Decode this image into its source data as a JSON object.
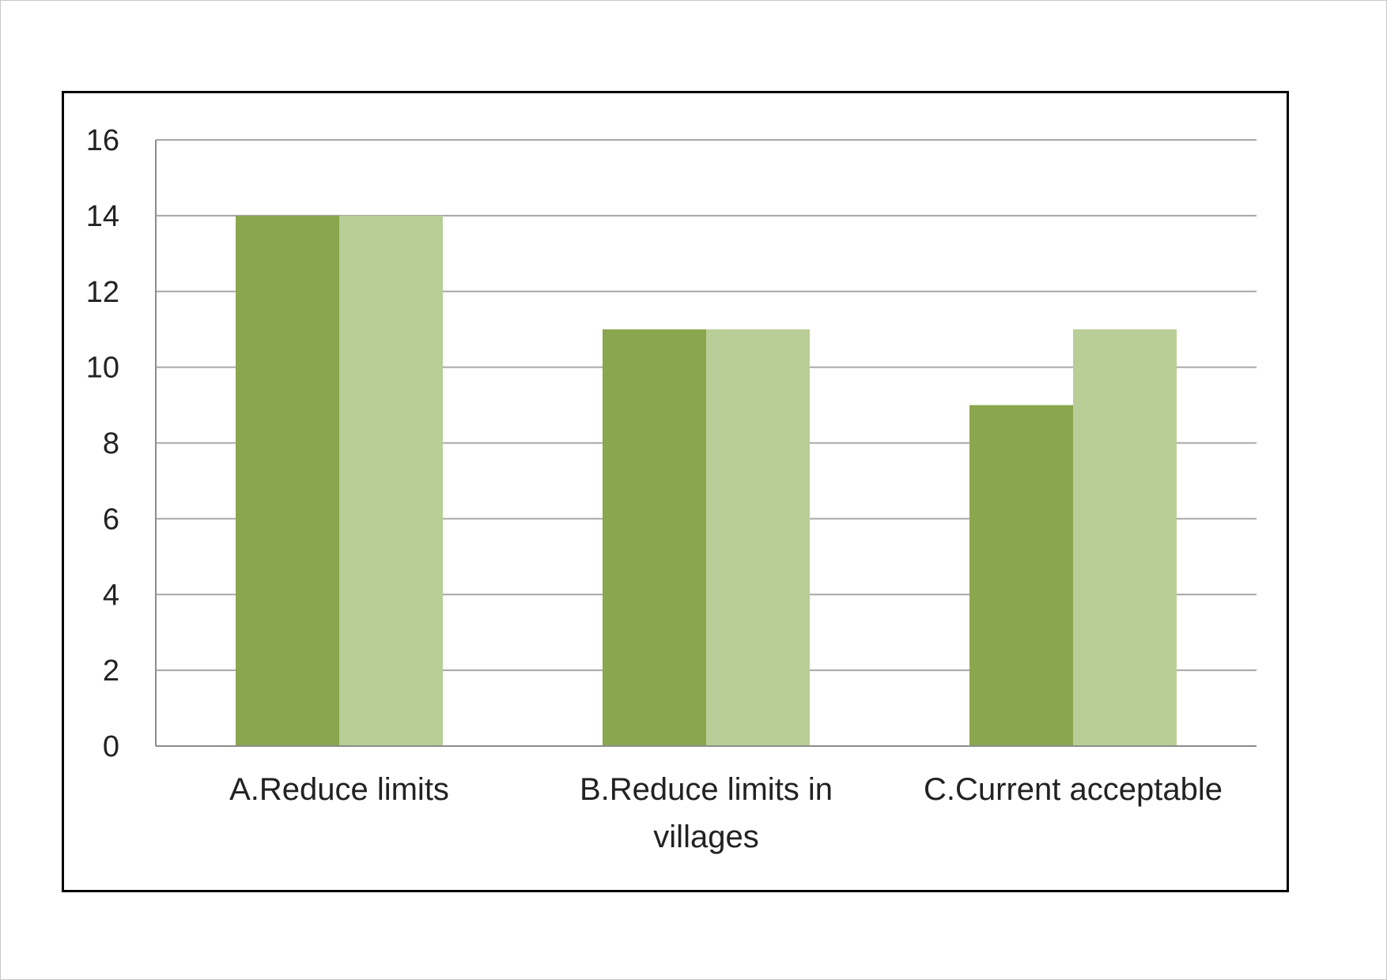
{
  "chart_data": {
    "type": "bar",
    "title": "",
    "xlabel": "",
    "ylabel": "",
    "categories": [
      [
        "A.Reduce limits"
      ],
      [
        "B.Reduce limits in",
        "villages"
      ],
      [
        "C.Current acceptable"
      ]
    ],
    "series": [
      {
        "values": [
          14,
          11,
          9
        ],
        "color": "#8aa64e"
      },
      {
        "values": [
          14,
          11,
          11
        ],
        "color": "#b9ce96"
      }
    ],
    "ylim": [
      0,
      16
    ],
    "yticks": [
      "0",
      "2",
      "4",
      "6",
      "8",
      "10",
      "12",
      "14",
      "16"
    ],
    "grid": true,
    "legend": "none",
    "colors": {
      "gridline": "#a6a6a6",
      "axis": "#8c8c8c",
      "frame": "#000000"
    }
  }
}
